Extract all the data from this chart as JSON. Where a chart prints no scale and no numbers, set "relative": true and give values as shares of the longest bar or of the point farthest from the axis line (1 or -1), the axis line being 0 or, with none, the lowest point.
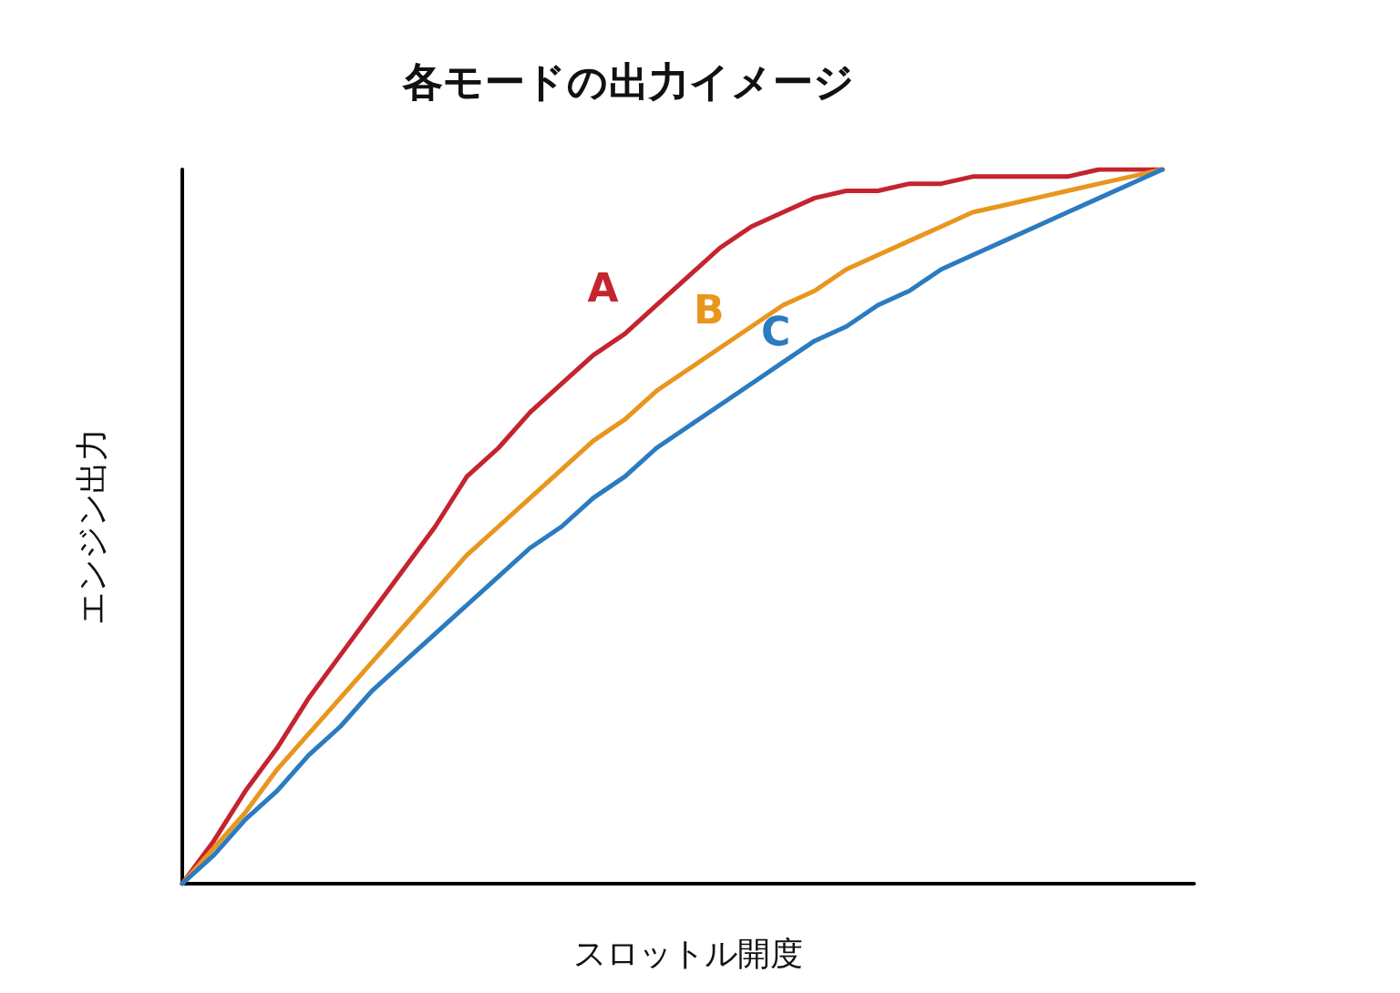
{
  "chart_data": {
    "type": "line",
    "title": "各モードの出力イメージ",
    "xlabel": "スロットル開度",
    "ylabel": "エンジン出力",
    "relative": true,
    "legend": false,
    "grid": false,
    "marker": "none",
    "line_style": "solid",
    "categories": [
      null,
      null,
      null,
      null,
      null,
      null,
      null,
      null,
      null,
      null,
      null,
      null,
      null,
      null,
      null,
      null,
      null,
      null,
      null,
      null,
      null,
      null,
      null,
      null,
      null,
      null,
      null,
      null,
      null,
      null,
      null,
      null,
      null
    ],
    "series": [
      {
        "name": "A",
        "color": "#c4242f",
        "values": [
          0,
          0.06,
          0.13,
          0.19,
          0.26,
          0.32,
          0.38,
          0.44,
          0.5,
          0.57,
          0.61,
          0.66,
          0.7,
          0.74,
          0.77,
          0.81,
          0.85,
          0.89,
          0.92,
          0.94,
          0.96,
          0.97,
          0.97,
          0.98,
          0.98,
          0.99,
          0.99,
          0.99,
          0.99,
          1,
          1,
          1,
          null
        ]
      },
      {
        "name": "B",
        "color": "#e8961e",
        "values": [
          0,
          0.05,
          0.1,
          0.16,
          0.21,
          0.26,
          0.31,
          0.36,
          0.41,
          0.46,
          0.5,
          0.54,
          0.58,
          0.62,
          0.65,
          0.69,
          0.72,
          0.75,
          0.78,
          0.81,
          0.83,
          0.86,
          0.88,
          0.9,
          0.92,
          0.94,
          0.95,
          0.96,
          0.97,
          0.98,
          0.99,
          1,
          null
        ]
      },
      {
        "name": "C",
        "color": "#2b7bc0",
        "values": [
          0,
          0.04,
          0.09,
          0.13,
          0.18,
          0.22,
          0.27,
          0.31,
          0.35,
          0.39,
          0.43,
          0.47,
          0.5,
          0.54,
          0.57,
          0.61,
          0.64,
          0.67,
          0.7,
          0.73,
          0.76,
          0.78,
          0.81,
          0.83,
          0.86,
          0.88,
          0.9,
          0.92,
          0.94,
          0.96,
          0.98,
          1,
          null
        ]
      }
    ]
  }
}
